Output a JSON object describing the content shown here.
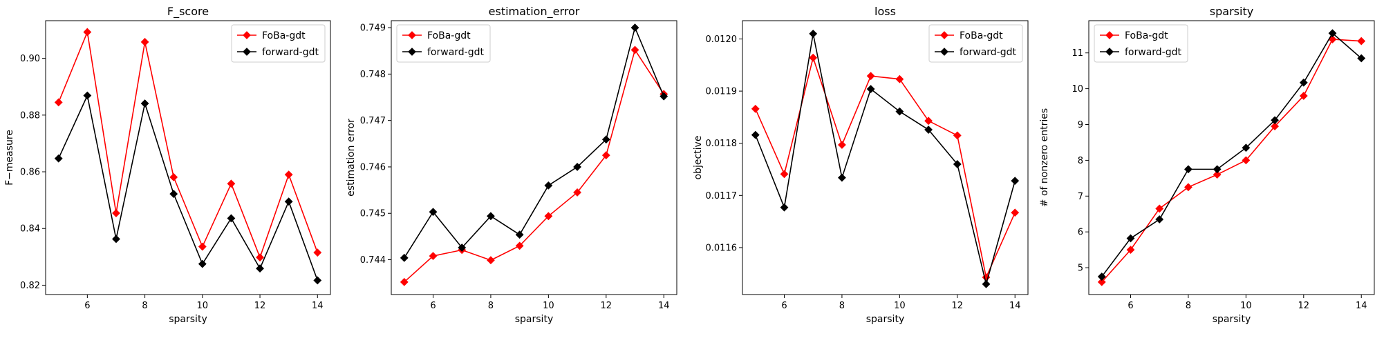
{
  "chart_data": [
    {
      "type": "line",
      "title": "F_score",
      "xlabel": "sparsity",
      "ylabel": "F−measure",
      "xlim": [
        4.55,
        14.45
      ],
      "ylim": [
        0.8167,
        0.9133
      ],
      "xticks": [
        6,
        8,
        10,
        12,
        14
      ],
      "xtick_labels": [
        "6",
        "8",
        "10",
        "12",
        "14"
      ],
      "yticks": [
        0.82,
        0.84,
        0.86,
        0.88,
        0.9
      ],
      "ytick_labels": [
        "0.82",
        "0.84",
        "0.86",
        "0.88",
        "0.90"
      ],
      "legend_position": "top-right",
      "x": [
        5,
        6,
        7,
        8,
        9,
        10,
        11,
        12,
        13,
        14
      ],
      "series": [
        {
          "name": "FoBa-gdt",
          "color": "#ff0000",
          "values": [
            0.8845,
            0.9093,
            0.8454,
            0.9058,
            0.8581,
            0.8336,
            0.8558,
            0.8298,
            0.859,
            0.8315
          ]
        },
        {
          "name": "forward-gdt",
          "color": "#000000",
          "values": [
            0.8647,
            0.8869,
            0.8363,
            0.8841,
            0.8522,
            0.8275,
            0.8436,
            0.8259,
            0.8495,
            0.8217
          ]
        }
      ]
    },
    {
      "type": "line",
      "title": "estimation_error",
      "xlabel": "sparsity",
      "ylabel": "estimation error",
      "xlim": [
        4.55,
        14.45
      ],
      "ylim": [
        0.74325,
        0.74915
      ],
      "xticks": [
        6,
        8,
        10,
        12,
        14
      ],
      "xtick_labels": [
        "6",
        "8",
        "10",
        "12",
        "14"
      ],
      "yticks": [
        0.744,
        0.745,
        0.746,
        0.747,
        0.748,
        0.749
      ],
      "ytick_labels": [
        "0.744",
        "0.745",
        "0.746",
        "0.747",
        "0.748",
        "0.749"
      ],
      "legend_position": "top-left",
      "x": [
        5,
        6,
        7,
        8,
        9,
        10,
        11,
        12,
        13,
        14
      ],
      "series": [
        {
          "name": "FoBa-gdt",
          "color": "#ff0000",
          "values": [
            0.74352,
            0.74408,
            0.74421,
            0.74399,
            0.7443,
            0.74494,
            0.74545,
            0.74625,
            0.74852,
            0.74757
          ]
        },
        {
          "name": "forward-gdt",
          "color": "#000000",
          "values": [
            0.74404,
            0.74503,
            0.74426,
            0.74494,
            0.74454,
            0.7456,
            0.746,
            0.74659,
            0.749,
            0.74752
          ]
        }
      ]
    },
    {
      "type": "line",
      "title": "loss",
      "xlabel": "sparsity",
      "ylabel": "objective",
      "xlim": [
        4.55,
        14.45
      ],
      "ylim": [
        0.01151,
        0.012035
      ],
      "xticks": [
        6,
        8,
        10,
        12,
        14
      ],
      "xtick_labels": [
        "6",
        "8",
        "10",
        "12",
        "14"
      ],
      "yticks": [
        0.0116,
        0.0117,
        0.0118,
        0.0119,
        0.012
      ],
      "ytick_labels": [
        "0.0116",
        "0.0117",
        "0.0118",
        "0.0119",
        "0.0120"
      ],
      "legend_position": "top-right",
      "x": [
        5,
        6,
        7,
        8,
        9,
        10,
        11,
        12,
        13,
        14
      ],
      "series": [
        {
          "name": "FoBa-gdt",
          "color": "#ff0000",
          "values": [
            0.011866,
            0.011741,
            0.011964,
            0.011797,
            0.011929,
            0.011923,
            0.011843,
            0.011815,
            0.011543,
            0.011667
          ]
        },
        {
          "name": "forward-gdt",
          "color": "#000000",
          "values": [
            0.011816,
            0.011677,
            0.01201,
            0.011734,
            0.011904,
            0.011861,
            0.011826,
            0.01176,
            0.01153,
            0.011728
          ]
        }
      ]
    },
    {
      "type": "line",
      "title": "sparsity",
      "xlabel": "sparsity",
      "ylabel": "# of nonzero entries",
      "xlim": [
        4.55,
        14.45
      ],
      "ylim": [
        4.25,
        11.9
      ],
      "xticks": [
        6,
        8,
        10,
        12,
        14
      ],
      "xtick_labels": [
        "6",
        "8",
        "10",
        "12",
        "14"
      ],
      "yticks": [
        5,
        6,
        7,
        8,
        9,
        10,
        11
      ],
      "ytick_labels": [
        "5",
        "6",
        "7",
        "8",
        "9",
        "10",
        "11"
      ],
      "legend_position": "top-left",
      "x": [
        5,
        6,
        7,
        8,
        9,
        10,
        11,
        12,
        13,
        14
      ],
      "series": [
        {
          "name": "FoBa-gdt",
          "color": "#ff0000",
          "values": [
            4.6,
            5.5,
            6.65,
            7.25,
            7.6,
            8.0,
            8.95,
            9.8,
            11.38,
            11.33
          ]
        },
        {
          "name": "forward-gdt",
          "color": "#000000",
          "values": [
            4.75,
            5.82,
            6.35,
            7.75,
            7.75,
            8.35,
            9.12,
            10.17,
            11.55,
            10.85
          ]
        }
      ]
    }
  ]
}
